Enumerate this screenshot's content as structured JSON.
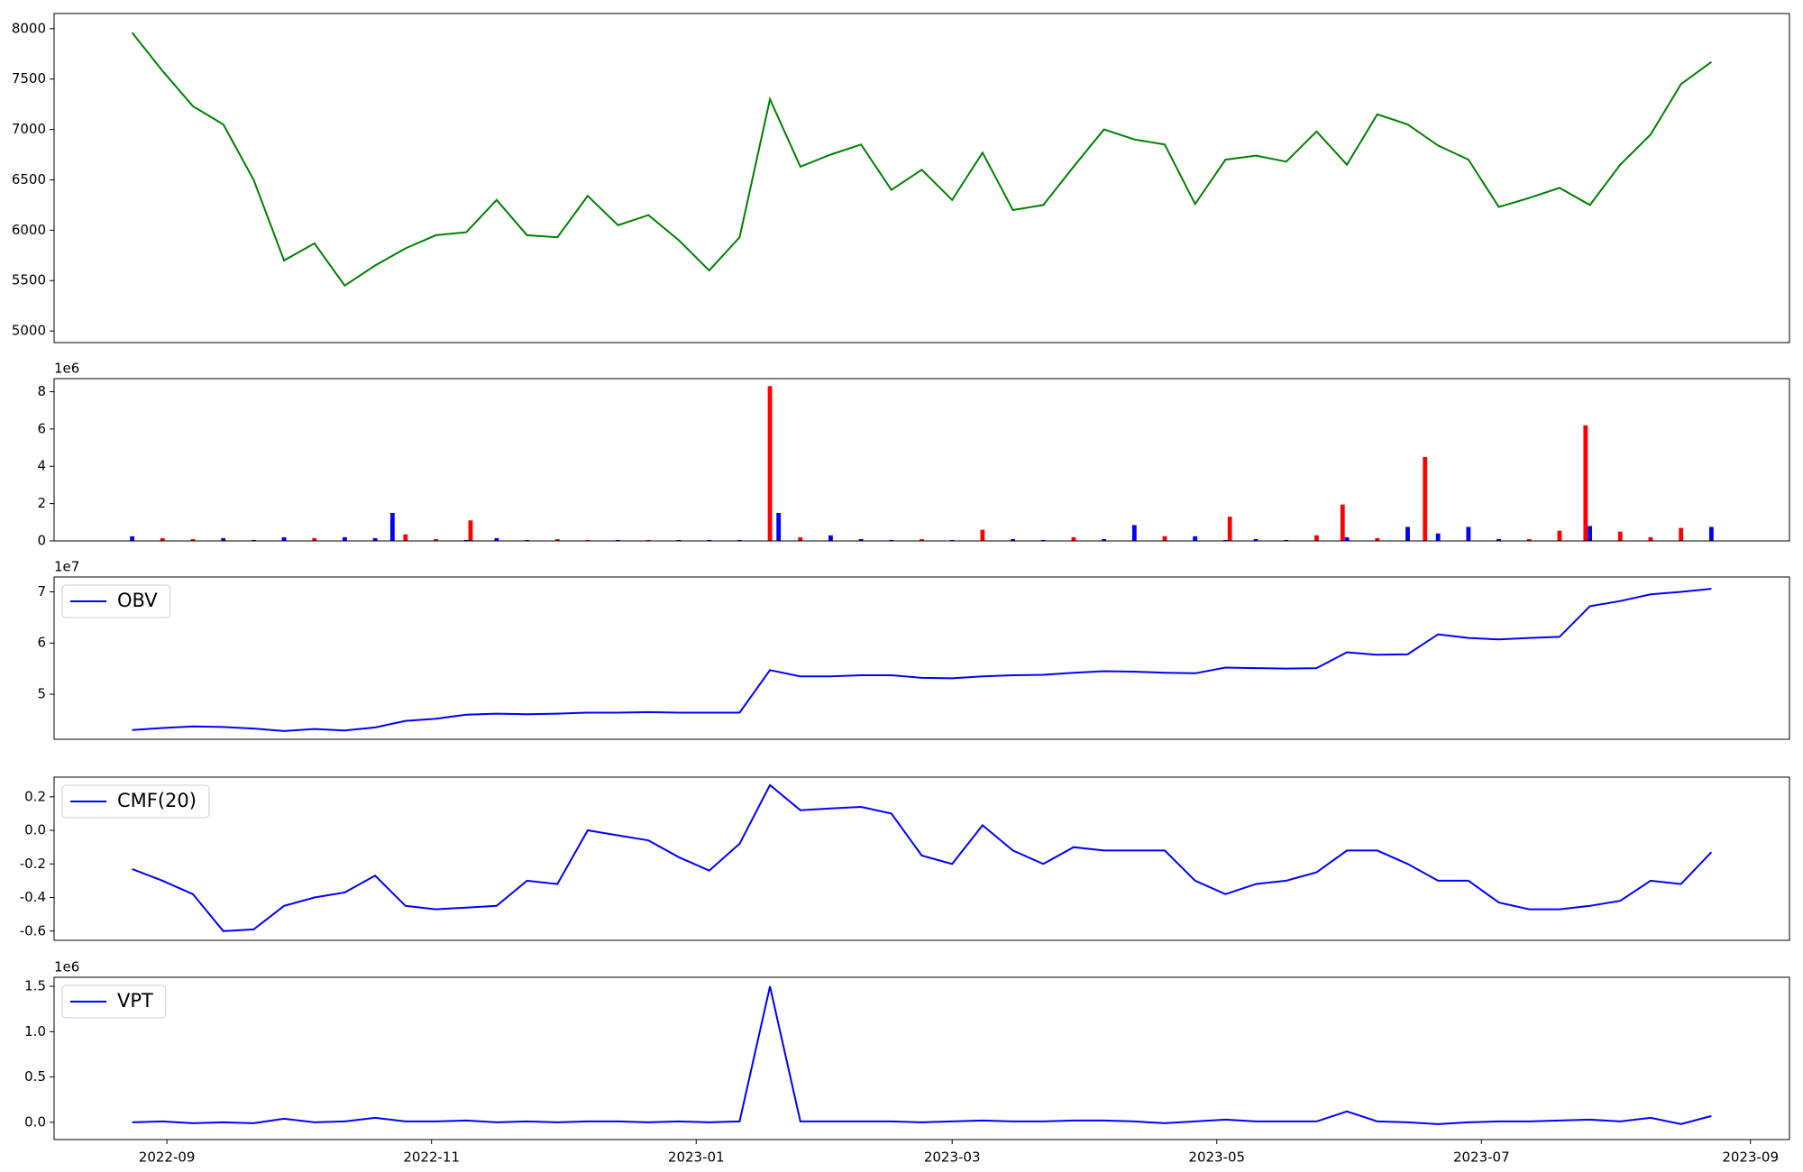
{
  "chart_data": [
    {
      "type": "line",
      "color": "#008000",
      "x": [
        19228,
        19235,
        19242,
        19249,
        19256,
        19263,
        19270,
        19277,
        19284,
        19291,
        19298,
        19305,
        19312,
        19319,
        19326,
        19333,
        19340,
        19347,
        19354,
        19361,
        19368,
        19375,
        19382,
        19389,
        19396,
        19403,
        19410,
        19417,
        19424,
        19431,
        19438,
        19445,
        19452,
        19459,
        19466,
        19473,
        19480,
        19487,
        19494,
        19501,
        19508,
        19515,
        19522,
        19529,
        19536,
        19543,
        19550,
        19557,
        19564,
        19571,
        19578,
        19585,
        19592
      ],
      "values": [
        7960,
        7580,
        7230,
        7050,
        6500,
        5700,
        5870,
        5450,
        5650,
        5820,
        5950,
        5980,
        6300,
        5950,
        5930,
        6340,
        6050,
        6150,
        5900,
        5600,
        5930,
        7300,
        6630,
        6750,
        6850,
        6400,
        6600,
        6300,
        6770,
        6200,
        6250,
        6630,
        7000,
        6900,
        6850,
        6260,
        6700,
        6740,
        6680,
        6980,
        6650,
        7150,
        7050,
        6840,
        6700,
        6230,
        6320,
        6420,
        6250,
        6650,
        6950,
        7450,
        7670
      ],
      "xlim": [
        19210,
        19610
      ],
      "ylim": [
        4885,
        8150
      ],
      "yticks": [
        5000,
        5500,
        6000,
        6500,
        7000,
        7500,
        8000
      ]
    },
    {
      "type": "bar",
      "offset_label": "1e6",
      "x": [
        19228,
        19235,
        19242,
        19249,
        19256,
        19263,
        19270,
        19277,
        19284,
        19288,
        19291,
        19298,
        19305,
        19306,
        19312,
        19319,
        19326,
        19333,
        19340,
        19347,
        19354,
        19361,
        19368,
        19375,
        19377,
        19382,
        19389,
        19396,
        19403,
        19410,
        19417,
        19424,
        19431,
        19438,
        19445,
        19452,
        19459,
        19466,
        19473,
        19480,
        19481,
        19487,
        19494,
        19501,
        19507,
        19508,
        19515,
        19522,
        19526,
        19529,
        19536,
        19543,
        19550,
        19557,
        19563,
        19564,
        19571,
        19578,
        19585,
        19592
      ],
      "values": [
        0.25,
        0.15,
        0.1,
        0.15,
        0.05,
        0.2,
        0.15,
        0.2,
        0.15,
        1.5,
        0.35,
        0.1,
        0.05,
        1.1,
        0.15,
        0.05,
        0.1,
        0.05,
        0.05,
        0.05,
        0.05,
        0.05,
        0.05,
        8.3,
        1.5,
        0.2,
        0.3,
        0.1,
        0.05,
        0.1,
        0.05,
        0.6,
        0.1,
        0.05,
        0.2,
        0.1,
        0.85,
        0.25,
        0.25,
        0.05,
        1.3,
        0.1,
        0.05,
        0.3,
        1.95,
        0.2,
        0.15,
        0.75,
        4.5,
        0.4,
        0.75,
        0.1,
        0.1,
        0.55,
        6.2,
        0.8,
        0.5,
        0.2,
        0.7,
        0.75
      ],
      "colors": [
        "blue",
        "red",
        "red",
        "blue",
        "blue",
        "blue",
        "red",
        "blue",
        "blue",
        "blue",
        "red",
        "red",
        "blue",
        "red",
        "blue",
        "blue",
        "red",
        "red",
        "blue",
        "red",
        "blue",
        "blue",
        "blue",
        "red",
        "blue",
        "red",
        "blue",
        "blue",
        "blue",
        "red",
        "blue",
        "red",
        "blue",
        "blue",
        "red",
        "blue",
        "blue",
        "red",
        "blue",
        "blue",
        "red",
        "blue",
        "blue",
        "red",
        "red",
        "blue",
        "red",
        "blue",
        "red",
        "blue",
        "blue",
        "blue",
        "red",
        "red",
        "red",
        "blue",
        "red",
        "red",
        "red",
        "blue"
      ],
      "xlim": [
        19210,
        19610
      ],
      "ylim": [
        0,
        8.7
      ],
      "yticks": [
        0,
        2,
        4,
        6,
        8
      ]
    },
    {
      "type": "line",
      "offset_label": "1e7",
      "legend": "upper left",
      "x": [
        19228,
        19235,
        19242,
        19249,
        19256,
        19263,
        19270,
        19277,
        19284,
        19291,
        19298,
        19305,
        19312,
        19319,
        19326,
        19333,
        19340,
        19347,
        19354,
        19361,
        19368,
        19375,
        19382,
        19389,
        19396,
        19403,
        19410,
        19417,
        19424,
        19431,
        19438,
        19445,
        19452,
        19459,
        19466,
        19473,
        19480,
        19487,
        19494,
        19501,
        19508,
        19515,
        19522,
        19529,
        19536,
        19543,
        19550,
        19557,
        19564,
        19571,
        19578,
        19585,
        19592
      ],
      "series": [
        {
          "name": "OBV",
          "color": "#0000ff",
          "values": [
            4.3,
            4.34,
            4.37,
            4.36,
            4.33,
            4.28,
            4.32,
            4.29,
            4.35,
            4.48,
            4.52,
            4.6,
            4.62,
            4.61,
            4.62,
            4.64,
            4.64,
            4.65,
            4.64,
            4.64,
            4.64,
            5.47,
            5.35,
            5.35,
            5.37,
            5.37,
            5.32,
            5.31,
            5.35,
            5.37,
            5.38,
            5.42,
            5.45,
            5.44,
            5.42,
            5.41,
            5.52,
            5.51,
            5.5,
            5.51,
            5.82,
            5.77,
            5.78,
            6.17,
            6.1,
            6.07,
            6.1,
            6.12,
            6.72,
            6.82,
            6.95,
            7.0,
            7.06
          ]
        }
      ],
      "xlim": [
        19210,
        19610
      ],
      "ylim": [
        4.12,
        7.29
      ],
      "yticks": [
        5,
        6,
        7
      ]
    },
    {
      "type": "line",
      "legend": "upper left",
      "x": [
        19228,
        19235,
        19242,
        19249,
        19256,
        19263,
        19270,
        19277,
        19284,
        19291,
        19298,
        19305,
        19312,
        19319,
        19326,
        19333,
        19340,
        19347,
        19354,
        19361,
        19368,
        19375,
        19382,
        19389,
        19396,
        19403,
        19410,
        19417,
        19424,
        19431,
        19438,
        19445,
        19452,
        19459,
        19466,
        19473,
        19480,
        19487,
        19494,
        19501,
        19508,
        19515,
        19522,
        19529,
        19536,
        19543,
        19550,
        19557,
        19564,
        19571,
        19578,
        19585,
        19592
      ],
      "series": [
        {
          "name": "CMF(20)",
          "color": "#0000ff",
          "values": [
            -0.23,
            -0.3,
            -0.38,
            -0.6,
            -0.59,
            -0.45,
            -0.4,
            -0.37,
            -0.27,
            -0.45,
            -0.47,
            -0.46,
            -0.45,
            -0.3,
            -0.32,
            0.0,
            -0.03,
            -0.06,
            -0.16,
            -0.24,
            -0.08,
            0.27,
            0.12,
            0.13,
            0.14,
            0.1,
            -0.15,
            -0.2,
            0.03,
            -0.12,
            -0.2,
            -0.1,
            -0.12,
            -0.12,
            -0.12,
            -0.3,
            -0.38,
            -0.32,
            -0.3,
            -0.25,
            -0.12,
            -0.12,
            -0.2,
            -0.3,
            -0.3,
            -0.43,
            -0.47,
            -0.47,
            -0.45,
            -0.42,
            -0.3,
            -0.32,
            -0.13
          ]
        }
      ],
      "xlim": [
        19210,
        19610
      ],
      "ylim": [
        -0.655,
        0.317
      ],
      "yticks": [
        -0.6,
        -0.4,
        -0.2,
        {
          "value": 0,
          "label": "0.0"
        },
        0.2
      ]
    },
    {
      "type": "line",
      "offset_label": "1e6",
      "legend": "upper left",
      "x": [
        19228,
        19235,
        19242,
        19249,
        19256,
        19263,
        19270,
        19277,
        19284,
        19291,
        19298,
        19305,
        19312,
        19319,
        19326,
        19333,
        19340,
        19347,
        19354,
        19361,
        19368,
        19375,
        19382,
        19389,
        19396,
        19403,
        19410,
        19417,
        19424,
        19431,
        19438,
        19445,
        19452,
        19459,
        19466,
        19473,
        19480,
        19487,
        19494,
        19501,
        19508,
        19515,
        19522,
        19529,
        19536,
        19543,
        19550,
        19557,
        19564,
        19571,
        19578,
        19585,
        19592
      ],
      "series": [
        {
          "name": "VPT",
          "color": "#0000ff",
          "values": [
            0.0,
            0.01,
            -0.01,
            0.0,
            -0.01,
            0.04,
            0.0,
            0.01,
            0.05,
            0.01,
            0.01,
            0.02,
            0.0,
            0.01,
            0.0,
            0.01,
            0.01,
            0.0,
            0.01,
            0.0,
            0.01,
            1.5,
            0.01,
            0.01,
            0.01,
            0.01,
            0.0,
            0.01,
            0.02,
            0.01,
            0.01,
            0.02,
            0.02,
            0.01,
            -0.01,
            0.01,
            0.03,
            0.01,
            0.01,
            0.01,
            0.12,
            0.01,
            0.0,
            -0.02,
            0.0,
            0.01,
            0.01,
            0.02,
            0.03,
            0.01,
            0.05,
            -0.02,
            0.07
          ]
        }
      ],
      "xlim": [
        19210,
        19610
      ],
      "ylim": [
        -0.19,
        1.6
      ],
      "yticks": [
        {
          "value": 0,
          "label": "0.0"
        },
        0.5,
        {
          "value": 1,
          "label": "1.0"
        },
        1.5
      ],
      "xticks": [
        {
          "value": 19236,
          "label": "2022-09"
        },
        {
          "value": 19297,
          "label": "2022-11"
        },
        {
          "value": 19358,
          "label": "2023-01"
        },
        {
          "value": 19417,
          "label": "2023-03"
        },
        {
          "value": 19478,
          "label": "2023-05"
        },
        {
          "value": 19539,
          "label": "2023-07"
        },
        {
          "value": 19601,
          "label": "2023-09"
        }
      ]
    }
  ]
}
